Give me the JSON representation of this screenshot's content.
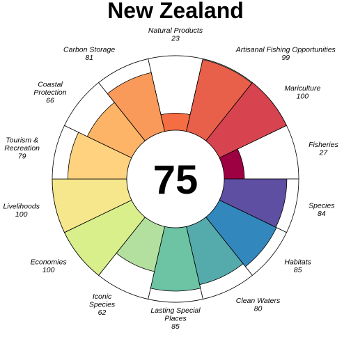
{
  "title": "New Zealand",
  "chart_data": {
    "type": "flower",
    "title": "New Zealand",
    "overall_score": "75",
    "max_score": 100,
    "petals": [
      {
        "name": "Natural Products",
        "score": 23,
        "color": "#f46d43"
      },
      {
        "name": "Artisanal Fishing Opportunities",
        "score": 99,
        "color": "#e8604a"
      },
      {
        "name": "Mariculture",
        "score": 100,
        "color": "#d7434f"
      },
      {
        "name": "Fisheries",
        "score": 27,
        "color": "#9e0142"
      },
      {
        "name": "Species",
        "score": 84,
        "color": "#5e4fa2"
      },
      {
        "name": "Habitats",
        "score": 85,
        "color": "#3288bd"
      },
      {
        "name": "Clean Waters",
        "score": 80,
        "color": "#55abab"
      },
      {
        "name": "Lasting Special Places",
        "score": 85,
        "color": "#6cc4a4"
      },
      {
        "name": "Iconic Species",
        "score": 62,
        "color": "#b3e09e"
      },
      {
        "name": "Economies",
        "score": 100,
        "color": "#d9ef8b"
      },
      {
        "name": "Livelihoods",
        "score": 100,
        "color": "#f6e68c"
      },
      {
        "name": "Tourism & Recreation",
        "score": 79,
        "color": "#fed27f"
      },
      {
        "name": "Coastal Protection",
        "score": 66,
        "color": "#fdb466"
      },
      {
        "name": "Carbon Storage",
        "score": 81,
        "color": "#f99a5a"
      }
    ]
  }
}
